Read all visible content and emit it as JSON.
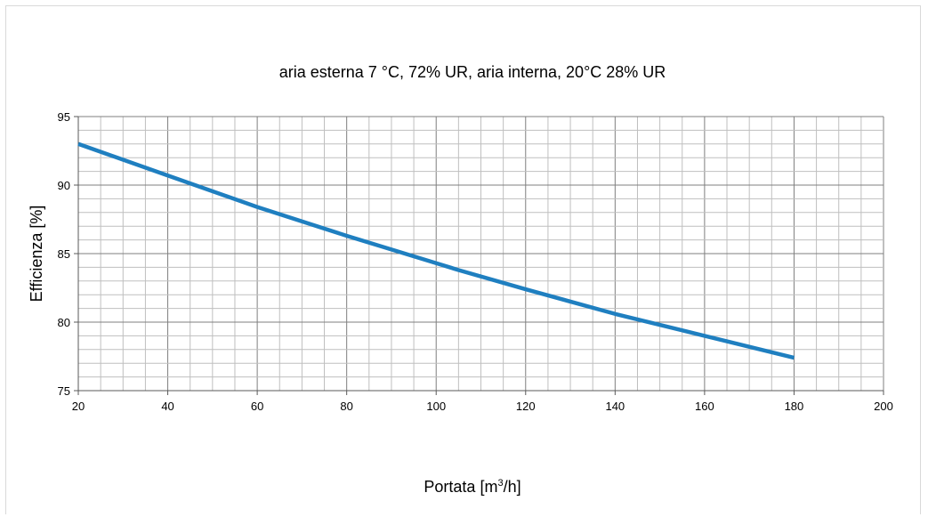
{
  "chart_data": {
    "type": "line",
    "title": "aria esterna 7 °C, 72% UR, aria interna, 20°C 28% UR",
    "xlabel": "Portata [m3/h]",
    "xlabel_parts": {
      "main": "Portata [m",
      "sup": "3",
      "tail": "/h]"
    },
    "ylabel": "Efficienza [%]",
    "xlim": [
      20,
      200
    ],
    "ylim": [
      75,
      95
    ],
    "x_ticks": [
      20,
      40,
      60,
      80,
      100,
      120,
      140,
      160,
      180,
      200
    ],
    "y_ticks": [
      75,
      80,
      85,
      90,
      95
    ],
    "x_minor_step": 5,
    "y_minor_step": 1,
    "grid": true,
    "legend": "none",
    "series": [
      {
        "color": "#1f7fc0",
        "x": [
          20,
          40,
          60,
          80,
          100,
          105,
          120,
          140,
          160,
          180
        ],
        "y": [
          93.0,
          90.7,
          88.4,
          86.3,
          84.3,
          83.8,
          82.4,
          80.6,
          79.0,
          77.4
        ]
      }
    ]
  }
}
